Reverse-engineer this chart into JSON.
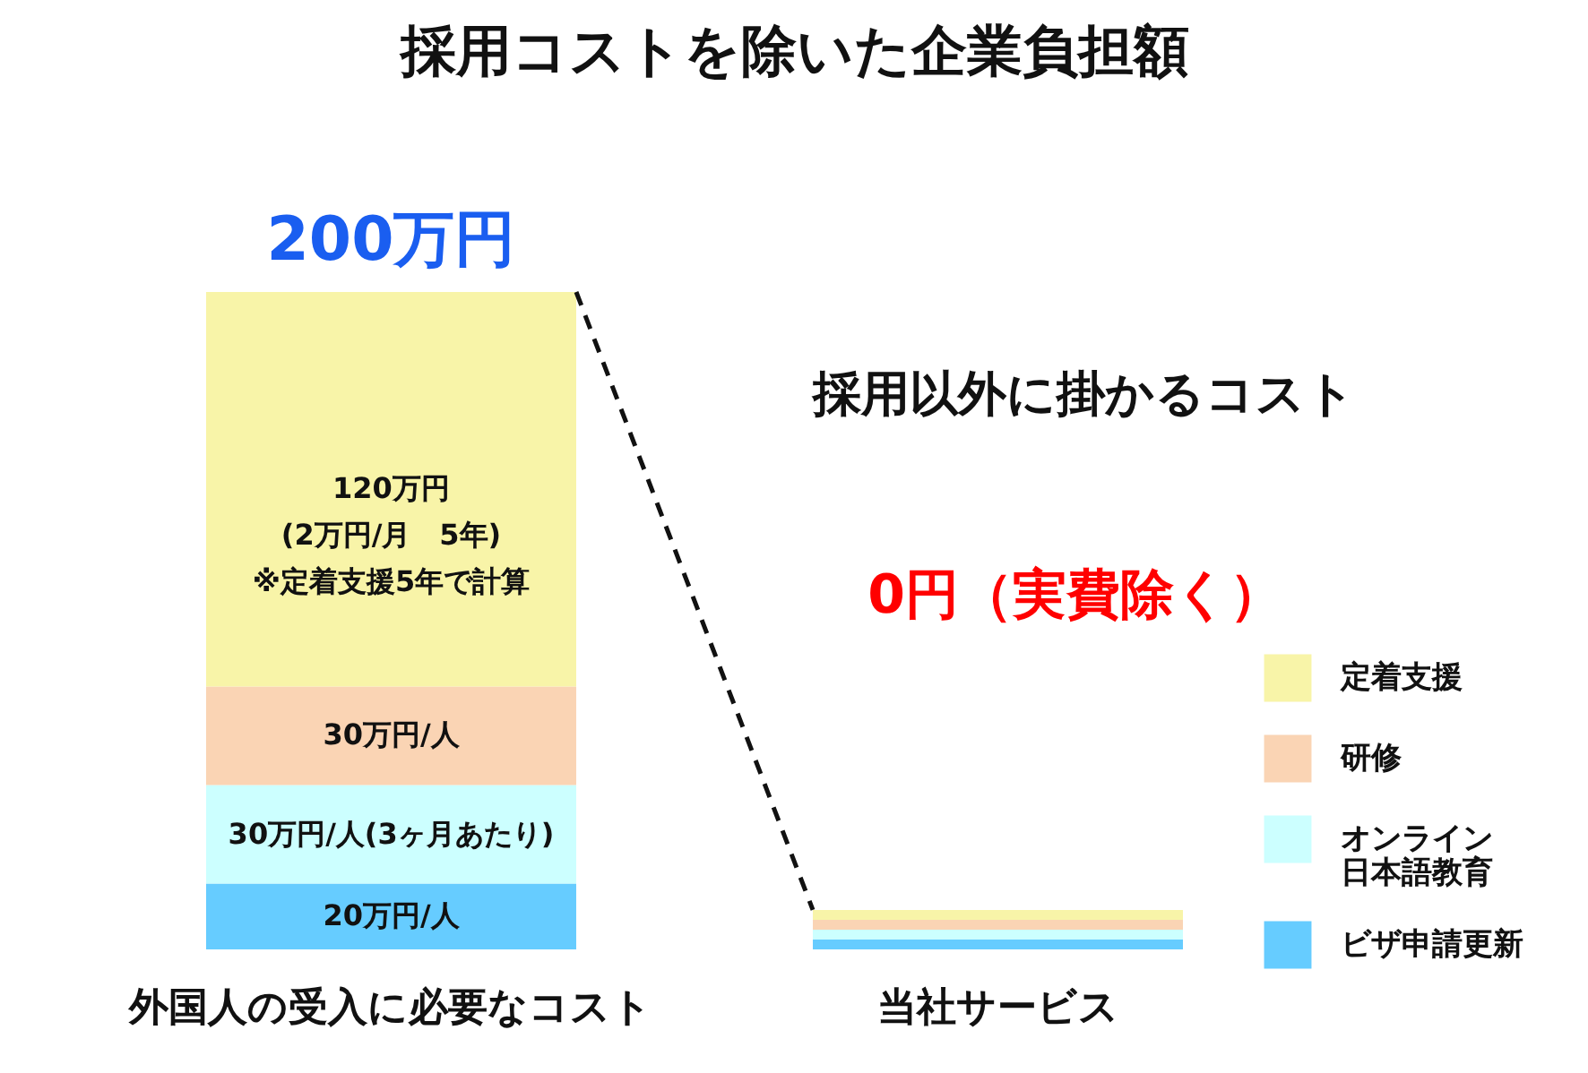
{
  "chart_data": {
    "type": "bar",
    "title": "採用コストを除いた企業負担額",
    "categories": [
      "外国人の受入に必要なコスト",
      "当社サービス"
    ],
    "stacked": true,
    "tick_labels": "x",
    "legend": "right",
    "totals": [
      "200万円",
      null
    ],
    "annotations": [
      "採用以外に掛かるコスト",
      "0円（実費除く）"
    ],
    "series": [
      {
        "name": "ビザ申請更新",
        "color": "#66ccff",
        "values": [
          20,
          3
        ],
        "value_labels": [
          "20万円/人",
          null
        ]
      },
      {
        "name": "オンライン日本語教育",
        "color": "#ccffff",
        "values": [
          30,
          3
        ],
        "value_labels": [
          "30万円/人(3ヶ月あたり)",
          null
        ]
      },
      {
        "name": "研修",
        "color": "#fad4b4",
        "values": [
          30,
          3
        ],
        "value_labels": [
          "30万円/人",
          null
        ]
      },
      {
        "name": "定着支援",
        "color": "#f8f4a8",
        "values": [
          120,
          3
        ],
        "value_labels": [
          "120万円\n(2万円/月　5年)\n※定着支援5年で計算",
          null
        ]
      }
    ]
  }
}
